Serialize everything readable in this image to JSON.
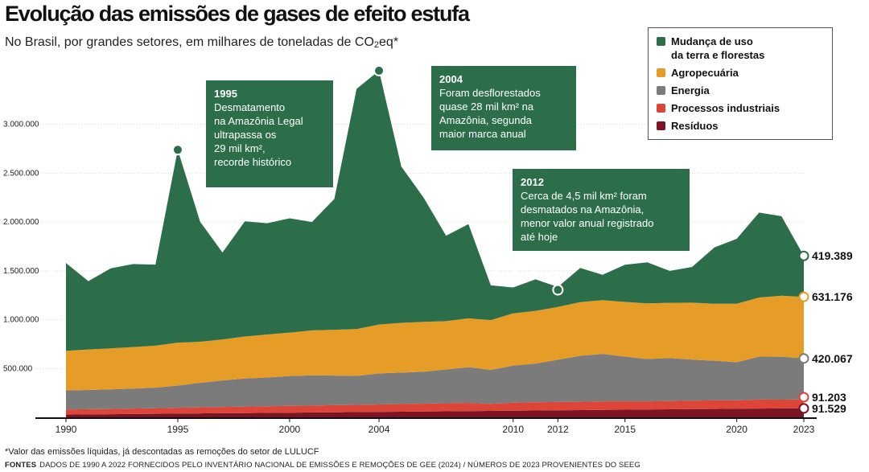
{
  "header": {
    "title": "Evolução das emissões de gases de efeito estufa",
    "subtitle_prefix": "No Brasil, por grandes setores, em milhares de toneladas de CO",
    "subtitle_sub": "2",
    "subtitle_suffix": "eq*"
  },
  "colors": {
    "land_use": "#2d6e4a",
    "agro": "#e59d28",
    "energy": "#7b7b7b",
    "industrial": "#dd4539",
    "waste": "#7d1423",
    "axis": "#111111",
    "grid": "#cccccc"
  },
  "legend": {
    "items": [
      {
        "label": "Mudança de uso\nda terra e florestas",
        "color": "#2d6e4a"
      },
      {
        "label": "Agropecuária",
        "color": "#e59d28"
      },
      {
        "label": "Energia",
        "color": "#7b7b7b"
      },
      {
        "label": "Processos industriais",
        "color": "#dd4539"
      },
      {
        "label": "Resíduos",
        "color": "#7d1423"
      }
    ]
  },
  "callouts": {
    "c1995": {
      "year": "1995",
      "text": "Desmatamento\nna Amazônia Legal\nultrapassa os\n29 mil km²,\nrecorde histórico"
    },
    "c2004": {
      "year": "2004",
      "text": "Foram desflorestados\nquase 28 mil km² na\nAmazônia, segunda\nmaior marca anual"
    },
    "c2012": {
      "year": "2012",
      "text": "Cerca de 4,5 mil km² foram\ndesmatados na Amazônia,\nmenor valor anual registrado\naté hoje"
    }
  },
  "chart_data": {
    "type": "area",
    "stacked": true,
    "title": "Evolução das emissões de gases de efeito estufa",
    "ylim": [
      0,
      3500000
    ],
    "y_ticks": [
      500000,
      1000000,
      1500000,
      2000000,
      2500000,
      3000000
    ],
    "y_tick_labels": [
      "500.000",
      "1.000.000",
      "1.500.000",
      "2.000.000",
      "2.500.000",
      "3.000.000"
    ],
    "x_ticks": [
      1990,
      1995,
      2000,
      2004,
      2010,
      2012,
      2015,
      2020,
      2023
    ],
    "x": [
      1990,
      1991,
      1992,
      1993,
      1994,
      1995,
      1996,
      1997,
      1998,
      1999,
      2000,
      2001,
      2002,
      2003,
      2004,
      2005,
      2006,
      2007,
      2008,
      2009,
      2010,
      2011,
      2012,
      2013,
      2014,
      2015,
      2016,
      2017,
      2018,
      2019,
      2020,
      2021,
      2022,
      2023
    ],
    "series": [
      {
        "name": "Resíduos",
        "color": "#7d1423",
        "values": [
          28000,
          30000,
          32000,
          34000,
          36000,
          38000,
          40000,
          42000,
          44000,
          46000,
          48000,
          50000,
          52000,
          54000,
          56000,
          58000,
          60000,
          62000,
          64000,
          66000,
          68000,
          70000,
          72000,
          74000,
          76000,
          78000,
          80000,
          82000,
          84000,
          86000,
          88000,
          90000,
          91000,
          91529
        ]
      },
      {
        "name": "Processos industriais",
        "color": "#dd4539",
        "values": [
          52000,
          53000,
          54000,
          56000,
          58000,
          60000,
          62000,
          64000,
          66000,
          68000,
          70000,
          70000,
          72000,
          74000,
          76000,
          78000,
          80000,
          82000,
          84000,
          72000,
          82000,
          84000,
          85000,
          86000,
          88000,
          86000,
          84000,
          85000,
          87000,
          88000,
          86000,
          92000,
          90000,
          91203
        ]
      },
      {
        "name": "Energia",
        "color": "#7b7b7b",
        "values": [
          195000,
          197000,
          200000,
          205000,
          210000,
          227000,
          252000,
          272000,
          288000,
          294000,
          305000,
          310000,
          303000,
          296000,
          318000,
          322000,
          328000,
          346000,
          366000,
          348000,
          380000,
          396000,
          433000,
          470000,
          486000,
          458000,
          433000,
          440000,
          420000,
          406000,
          390000,
          440000,
          440000,
          420067
        ]
      },
      {
        "name": "Agropecuária",
        "color": "#e59d28",
        "values": [
          405000,
          415000,
          420000,
          425000,
          430000,
          440000,
          420000,
          420000,
          430000,
          440000,
          445000,
          460000,
          470000,
          480000,
          500000,
          510000,
          510000,
          495000,
          500000,
          510000,
          535000,
          540000,
          540000,
          550000,
          550000,
          560000,
          570000,
          566000,
          583000,
          583000,
          600000,
          605000,
          625000,
          631176
        ]
      },
      {
        "name": "Mudança de uso da terra e florestas",
        "color": "#2d6e4a",
        "values": [
          900000,
          700000,
          820000,
          850000,
          830000,
          1975000,
          1230000,
          890000,
          1180000,
          1140000,
          1170000,
          1110000,
          1340000,
          2460000,
          2600000,
          1600000,
          1270000,
          875000,
          965000,
          355000,
          265000,
          323000,
          205000,
          350000,
          260000,
          380000,
          420000,
          327000,
          366000,
          577000,
          664000,
          870000,
          814000,
          419389
        ]
      }
    ],
    "end_labels": [
      "419.389",
      "631.176",
      "420.067",
      "91.203",
      "91.529"
    ],
    "callout_points": {
      "1995": 2740000,
      "2004": 3550000,
      "2012": 1305000
    }
  },
  "footnote": "*Valor das emissões líquidas, já descontadas as remoções do setor de LULUCF",
  "sources": {
    "label": "FONTES",
    "text": "DADOS DE 1990 A 2022 FORNECIDOS PELO INVENTÁRIO NACIONAL DE EMISSÕES E REMOÇÕES DE GEE (2024) / NÚMEROS DE 2023 PROVENIENTES DO SEEG"
  }
}
